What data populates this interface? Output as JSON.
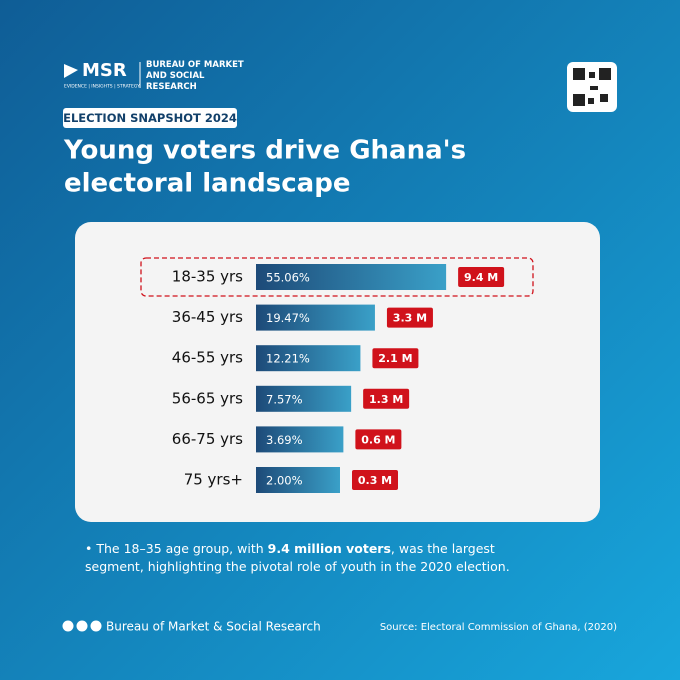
{
  "brand": {
    "logo": "MSR",
    "name": "BUREAU OF MARKET AND SOCIAL RESEARCH",
    "tagline": "EVIDENCE | INSIGHTS | STRATEGY"
  },
  "badge": "ELECTION SNAPSHOT 2024",
  "title_lines": [
    "Young voters drive Ghana's",
    "electoral landscape"
  ],
  "chart_data": {
    "type": "bar",
    "orientation": "horizontal",
    "categories": [
      "18-35 yrs",
      "36-45 yrs",
      "46-55 yrs",
      "56-65 yrs",
      "66-75 yrs",
      "75 yrs+"
    ],
    "values": [
      55.06,
      19.47,
      12.21,
      7.57,
      3.69,
      2.0
    ],
    "value_labels": [
      "55.06%",
      "19.47%",
      "12.21%",
      "7.57%",
      "3.69%",
      "2.00%"
    ],
    "voters": {
      "values": [
        9.4,
        3.3,
        2.1,
        1.3,
        0.6,
        0.3
      ],
      "value_labels": [
        "9.4 M",
        "3.3 M",
        "2.1 M",
        "1.3 M",
        "0.6 M",
        "0.3 M"
      ],
      "color": "#d0121b"
    },
    "colors": [
      "#1d4a78",
      "#3aa0c8"
    ]
  },
  "note": {
    "before": "The 18–35 age group, with ",
    "bold": "9.4 million voters",
    "after": ", was the largest segment, highlighting the pivotal role of youth in the 2020 election."
  },
  "footer": {
    "org": "Bureau of Market & Social Research",
    "source": "Source: Electoral Commission of Ghana, (2020)"
  }
}
